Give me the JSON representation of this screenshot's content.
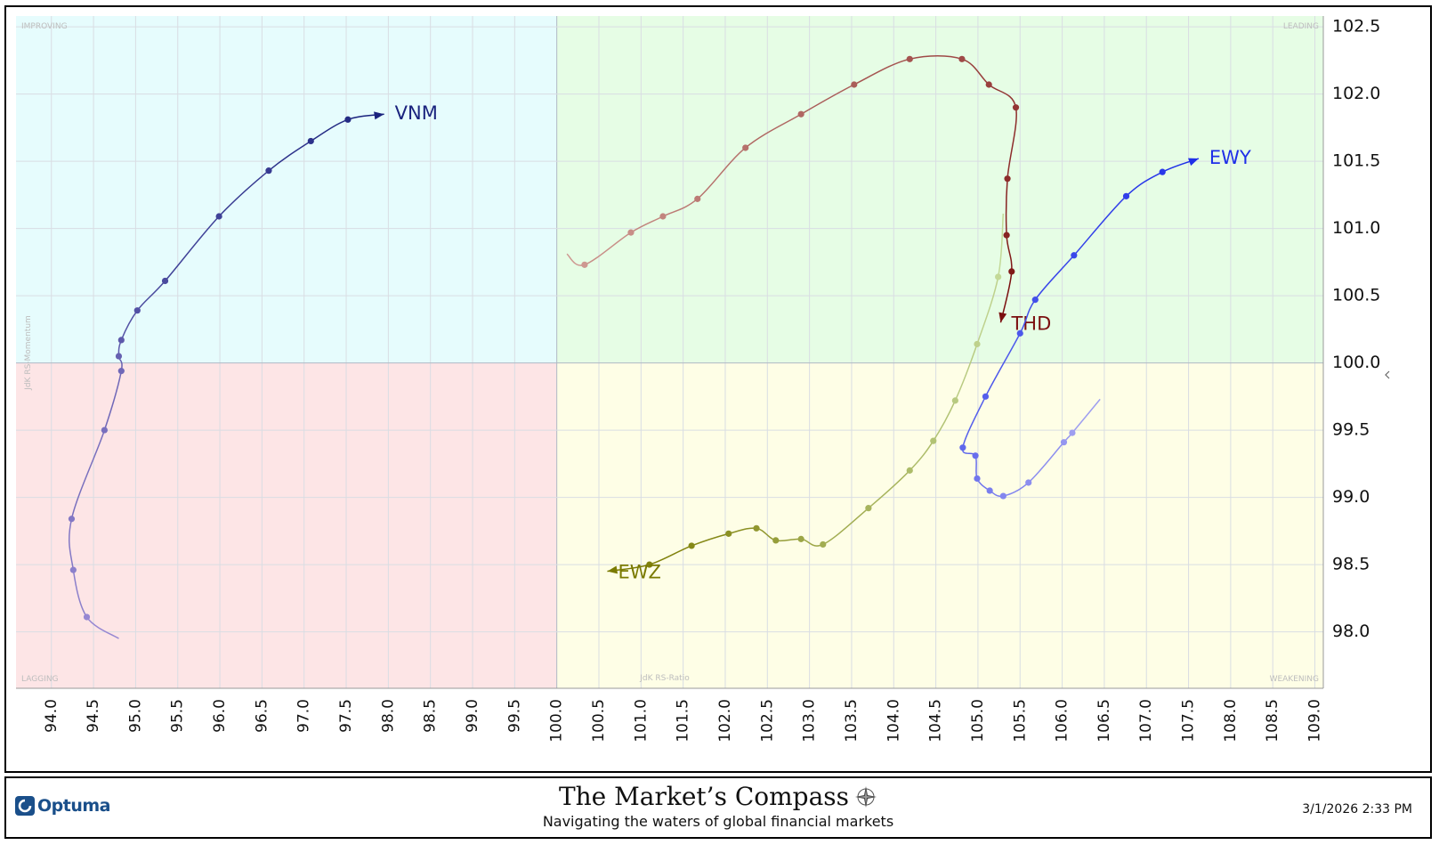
{
  "quadrants": {
    "improving": {
      "label": "IMPROVING",
      "color": "#e6fcfd"
    },
    "leading": {
      "label": "LEADING",
      "color": "#e6fde5"
    },
    "lagging": {
      "label": "LAGGING",
      "color": "#fde5e6"
    },
    "weakening": {
      "label": "WEAKENING",
      "color": "#fefee6"
    }
  },
  "footer": {
    "optuma_label": "Optuma",
    "brand_title": "The Market’s Compass",
    "brand_tagline": "Navigating the waters of global financial markets",
    "timestamp": "3/1/2026 2:33 PM"
  },
  "chart_data": {
    "type": "scatter",
    "xlabel": "JdK RS-Ratio",
    "ylabel": "JdK RS-Momentum",
    "xlim": [
      93.58,
      109.1
    ],
    "ylim": [
      97.58,
      102.58
    ],
    "x_ticks": [
      "94.0",
      "94.5",
      "95.0",
      "95.5",
      "96.0",
      "96.5",
      "97.0",
      "97.5",
      "98.0",
      "98.5",
      "99.0",
      "99.5",
      "100.0",
      "100.5",
      "101.0",
      "101.5",
      "102.0",
      "102.5",
      "103.0",
      "103.5",
      "104.0",
      "104.5",
      "105.0",
      "105.5",
      "106.0",
      "106.5",
      "107.0",
      "107.5",
      "108.0",
      "108.5",
      "109.0"
    ],
    "y_ticks": [
      "98.0",
      "98.5",
      "99.0",
      "99.5",
      "100.0",
      "100.5",
      "101.0",
      "101.5",
      "102.0",
      "102.5"
    ],
    "center": [
      100,
      100
    ],
    "series": [
      {
        "name": "VNM",
        "color": "#1a237e",
        "tail_color": "#9f8fd8",
        "points": [
          [
            94.8,
            97.95
          ],
          [
            94.42,
            98.11
          ],
          [
            94.26,
            98.46
          ],
          [
            94.24,
            98.84
          ],
          [
            94.63,
            99.5
          ],
          [
            94.83,
            99.94
          ],
          [
            94.8,
            100.05
          ],
          [
            94.83,
            100.17
          ],
          [
            95.02,
            100.39
          ],
          [
            95.35,
            100.61
          ],
          [
            95.99,
            101.09
          ],
          [
            96.58,
            101.43
          ],
          [
            97.08,
            101.65
          ],
          [
            97.52,
            101.81
          ],
          [
            97.95,
            101.85
          ]
        ]
      },
      {
        "name": "THD",
        "color": "#7b0f0f",
        "tail_color": "#d4a29a",
        "points": [
          [
            100.12,
            100.81
          ],
          [
            100.33,
            100.73
          ],
          [
            100.88,
            100.97
          ],
          [
            101.26,
            101.09
          ],
          [
            101.67,
            101.22
          ],
          [
            102.24,
            101.6
          ],
          [
            102.9,
            101.85
          ],
          [
            103.53,
            102.07
          ],
          [
            104.19,
            102.26
          ],
          [
            104.81,
            102.26
          ],
          [
            105.13,
            102.07
          ],
          [
            105.45,
            101.9
          ],
          [
            105.35,
            101.37
          ],
          [
            105.34,
            100.95
          ],
          [
            105.4,
            100.68
          ],
          [
            105.27,
            100.3
          ]
        ]
      },
      {
        "name": "EWY",
        "color": "#1f2fe8",
        "tail_color": "#a7a6f1",
        "points": [
          [
            106.45,
            99.73
          ],
          [
            106.12,
            99.48
          ],
          [
            106.02,
            99.41
          ],
          [
            105.6,
            99.11
          ],
          [
            105.3,
            99.01
          ],
          [
            105.14,
            99.05
          ],
          [
            104.99,
            99.14
          ],
          [
            104.97,
            99.31
          ],
          [
            104.82,
            99.37
          ],
          [
            105.09,
            99.75
          ],
          [
            105.5,
            100.22
          ],
          [
            105.68,
            100.47
          ],
          [
            106.14,
            100.8
          ],
          [
            106.76,
            101.24
          ],
          [
            107.19,
            101.42
          ],
          [
            107.62,
            101.52
          ]
        ]
      },
      {
        "name": "EWZ",
        "color": "#7a7a00",
        "tail_color": "#c9e0a3",
        "points": [
          [
            105.3,
            101.11
          ],
          [
            105.24,
            100.64
          ],
          [
            104.99,
            100.14
          ],
          [
            104.73,
            99.72
          ],
          [
            104.47,
            99.42
          ],
          [
            104.19,
            99.2
          ],
          [
            103.7,
            98.92
          ],
          [
            103.16,
            98.65
          ],
          [
            102.9,
            98.69
          ],
          [
            102.6,
            98.68
          ],
          [
            102.37,
            98.77
          ],
          [
            102.04,
            98.73
          ],
          [
            101.6,
            98.64
          ],
          [
            101.1,
            98.5
          ],
          [
            100.6,
            98.45
          ]
        ]
      }
    ]
  }
}
